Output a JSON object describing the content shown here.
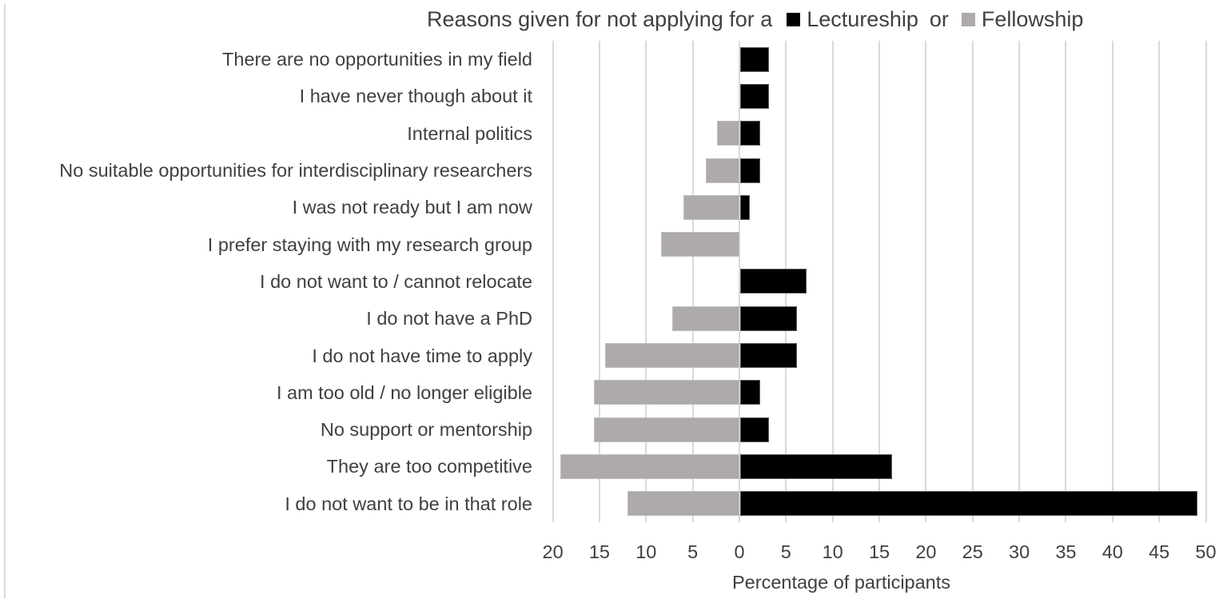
{
  "chart_data": {
    "type": "bar",
    "orientation": "horizontal-diverging",
    "title": "Reasons given for not applying for a Lectureship or Fellowship",
    "title_parts": {
      "prefix": "Reasons given for not applying for a",
      "connector": "or"
    },
    "xlabel": "Percentage of participants",
    "ylabel": "",
    "xlim": [
      -20,
      50
    ],
    "x_ticks": [
      20,
      15,
      10,
      5,
      0,
      5,
      10,
      15,
      20,
      25,
      30,
      35,
      40,
      45,
      50
    ],
    "x_tick_positions": [
      -20,
      -15,
      -10,
      -5,
      0,
      5,
      10,
      15,
      20,
      25,
      30,
      35,
      40,
      45,
      50
    ],
    "grid": "vertical",
    "legend_position": "inline-title",
    "categories": [
      "There are no opportunities in my field",
      "I have never though about it",
      "Internal politics",
      "No suitable opportunities for interdisciplinary researchers",
      "I was not ready but I am now",
      "I prefer staying with my research group",
      "I do not want to / cannot relocate",
      "I do not have a PhD",
      "I do not have time to apply",
      "I am too old / no longer eligible",
      "No support or mentorship",
      "They are too competitive",
      "I do not want to be in that role"
    ],
    "series": [
      {
        "name": "Lectureship",
        "color": "#000000",
        "direction": "right",
        "values": [
          3.1,
          3.1,
          2.1,
          2.1,
          1.0,
          0,
          7.1,
          6.1,
          6.1,
          2.1,
          3.1,
          16.3,
          49.0
        ]
      },
      {
        "name": "Fellowship",
        "color": "#aeaaaa",
        "direction": "left",
        "values": [
          0,
          0,
          2.4,
          3.6,
          6.0,
          8.4,
          0,
          7.2,
          14.4,
          15.6,
          15.6,
          19.2,
          12.0
        ]
      }
    ]
  }
}
